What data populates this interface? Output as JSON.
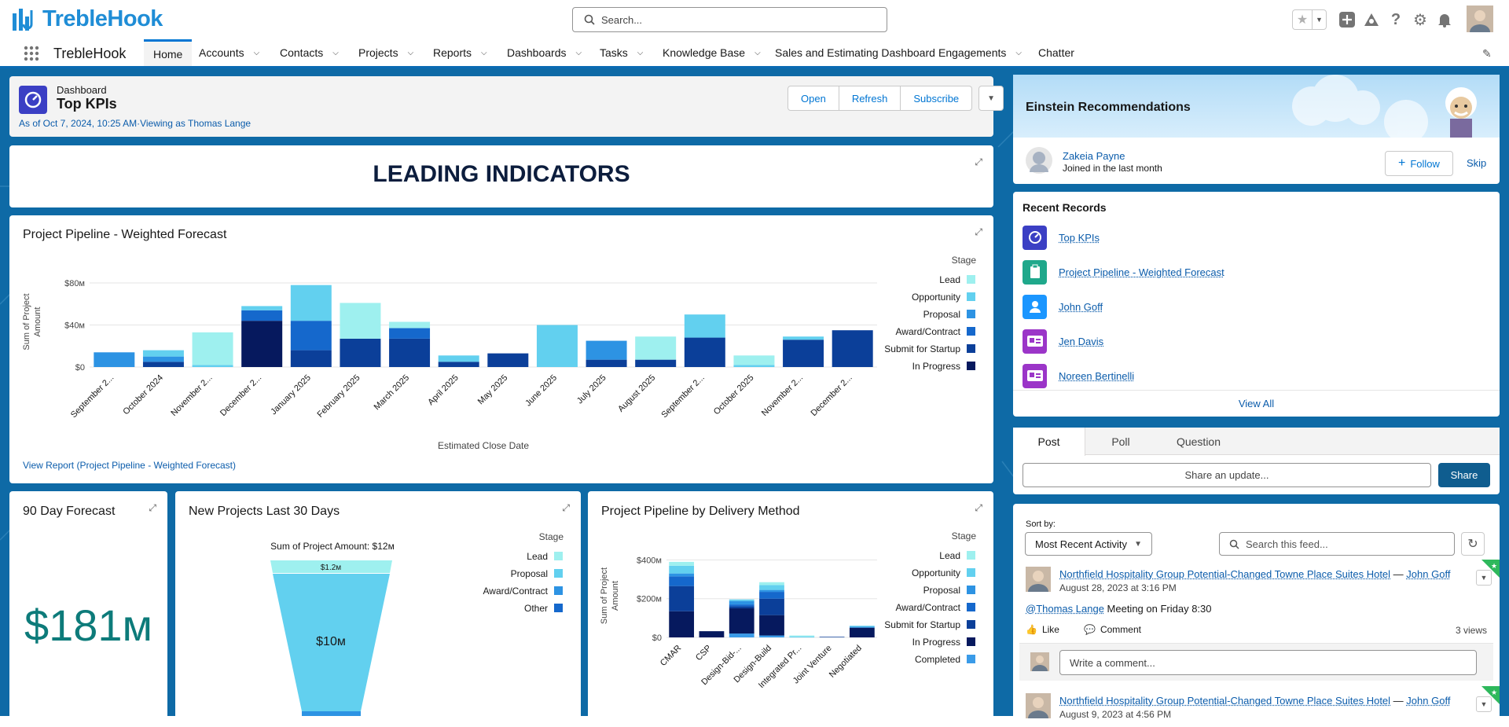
{
  "app": {
    "brand": "TrebleHook",
    "search_placeholder": "Search...",
    "nav_app_name": "TrebleHook",
    "nav_items": [
      {
        "label": "Home",
        "active": true,
        "dropdown": false
      },
      {
        "label": "Accounts",
        "dropdown": true
      },
      {
        "label": "Contacts",
        "dropdown": true
      },
      {
        "label": "Projects",
        "dropdown": true
      },
      {
        "label": "Reports",
        "dropdown": true
      },
      {
        "label": "Dashboards",
        "dropdown": true
      },
      {
        "label": "Tasks",
        "dropdown": true
      },
      {
        "label": "Knowledge Base",
        "dropdown": true
      },
      {
        "label": "Sales and Estimating Dashboard",
        "dropdown": false
      },
      {
        "label": "Engagements",
        "dropdown": true
      },
      {
        "label": "Chatter",
        "dropdown": false
      }
    ],
    "header_icons": [
      "star-icon",
      "add-icon",
      "trailhead-icon",
      "help-icon",
      "setup-gear-icon",
      "notification-bell-icon",
      "user-avatar"
    ],
    "colors": {
      "accent": "#0176d3",
      "brand": "#1f8dd6",
      "background": "#0e6aa6"
    }
  },
  "dashboard": {
    "object_label": "Dashboard",
    "title": "Top KPIs",
    "as_of": "As of Oct 7, 2024, 10:25 AM·Viewing as Thomas Lange",
    "buttons": {
      "open": "Open",
      "refresh": "Refresh",
      "subscribe": "Subscribe"
    },
    "banner_text": "LEADING INDICATORS"
  },
  "widgets": {
    "pipeline": {
      "title": "Project Pipeline - Weighted Forecast",
      "view_report": "View Report (Project Pipeline - Weighted Forecast)"
    },
    "forecast90": {
      "title": "90 Day Forecast",
      "value": "$181м"
    },
    "new_projects": {
      "title": "New Projects Last 30 Days"
    },
    "delivery": {
      "title": "Project Pipeline by Delivery Method"
    }
  },
  "chart_data": [
    {
      "type": "bar",
      "stacked": true,
      "title": "Project Pipeline - Weighted Forecast",
      "xlabel": "Estimated Close Date",
      "ylabel": "Sum of Project Amount",
      "legend_title": "Stage",
      "legend_position": "right",
      "yticks": [
        "$0",
        "$40м",
        "$80м"
      ],
      "ylim": [
        0,
        86
      ],
      "categories": [
        "September 2...",
        "October 2024",
        "November 2...",
        "December 2...",
        "January 2025",
        "February 2025",
        "March 2025",
        "April 2025",
        "May 2025",
        "June 2025",
        "July 2025",
        "August 2025",
        "September 2...",
        "October 2025",
        "November 2...",
        "December 2..."
      ],
      "series": [
        {
          "name": "Lead",
          "color": "#9ef0ef",
          "values": [
            0,
            0,
            31,
            0,
            0,
            34,
            6,
            0,
            0,
            0,
            0,
            22,
            0,
            9,
            0,
            0
          ]
        },
        {
          "name": "Opportunity",
          "color": "#62d0ef",
          "values": [
            0,
            6,
            2,
            4,
            34,
            0,
            0,
            6,
            0,
            40,
            0,
            0,
            22,
            2,
            3,
            0
          ]
        },
        {
          "name": "Proposal",
          "color": "#2d93e3",
          "values": [
            14,
            5,
            0,
            0,
            0,
            0,
            0,
            0,
            0,
            0,
            18,
            0,
            0,
            0,
            0,
            0
          ]
        },
        {
          "name": "Award/Contract",
          "color": "#1568cc",
          "values": [
            0,
            0,
            0,
            10,
            28,
            0,
            10,
            0,
            0,
            0,
            0,
            0,
            0,
            0,
            0,
            0
          ]
        },
        {
          "name": "Submit for Startup",
          "color": "#0b3f99",
          "values": [
            0,
            5,
            0,
            0,
            16,
            27,
            27,
            5,
            13,
            0,
            7,
            7,
            28,
            0,
            26,
            35
          ]
        },
        {
          "name": "In Progress",
          "color": "#06195e",
          "values": [
            0,
            0,
            0,
            44,
            0,
            0,
            0,
            0,
            0,
            0,
            0,
            0,
            0,
            0,
            0,
            0
          ]
        }
      ]
    },
    {
      "type": "funnel",
      "title": "New Projects Last 30 Days",
      "subtitle": "Sum of Project Amount: $12м",
      "legend_title": "Stage",
      "legend_position": "right",
      "series": [
        {
          "name": "Lead",
          "color": "#9ef0ef"
        },
        {
          "name": "Proposal",
          "color": "#62d0ef"
        },
        {
          "name": "Award/Contract",
          "color": "#2d93e3"
        },
        {
          "name": "Other",
          "color": "#1568cc"
        }
      ],
      "segments": [
        {
          "stage": "Lead",
          "label": "$1.2м",
          "value": 1.2
        },
        {
          "stage": "Proposal",
          "label": "$10м",
          "value": 10
        }
      ]
    },
    {
      "type": "bar",
      "stacked": true,
      "title": "Project Pipeline by Delivery Method",
      "ylabel": "Sum of Project Amount",
      "legend_title": "Stage",
      "legend_position": "right",
      "yticks": [
        "$0",
        "$200м",
        "$400м"
      ],
      "ylim": [
        0,
        430
      ],
      "categories": [
        "CMAR",
        "CSP",
        "Design-Bid-...",
        "Design-Build",
        "Integrated Pr...",
        "Joint Venture",
        "Negotiated"
      ],
      "series": [
        {
          "name": "Lead",
          "color": "#9ef0ef",
          "values": [
            20,
            0,
            0,
            15,
            5,
            0,
            0
          ]
        },
        {
          "name": "Opportunity",
          "color": "#62d0ef",
          "values": [
            40,
            0,
            8,
            25,
            5,
            0,
            5
          ]
        },
        {
          "name": "Proposal",
          "color": "#2d93e3",
          "values": [
            15,
            0,
            18,
            10,
            0,
            0,
            5
          ]
        },
        {
          "name": "Award/Contract",
          "color": "#1568cc",
          "values": [
            50,
            0,
            10,
            35,
            0,
            0,
            0
          ]
        },
        {
          "name": "Submit for Startup",
          "color": "#0b3f99",
          "values": [
            130,
            0,
            10,
            85,
            0,
            3,
            0
          ]
        },
        {
          "name": "In Progress",
          "color": "#06195e",
          "values": [
            135,
            32,
            130,
            105,
            0,
            0,
            50
          ]
        },
        {
          "name": "Completed",
          "color": "#3a9be8",
          "values": [
            0,
            0,
            20,
            10,
            0,
            0,
            0
          ]
        }
      ]
    }
  ],
  "einstein": {
    "title": "Einstein Recommendations",
    "person_name": "Zakeia Payne",
    "person_sub": "Joined in the last month",
    "follow_label": "Follow",
    "skip_label": "Skip"
  },
  "recent_records": {
    "title": "Recent Records",
    "items": [
      {
        "label": "Top KPIs",
        "icon": "dashboard-icon",
        "color": "#3b3fc4"
      },
      {
        "label": "Project Pipeline - Weighted Forecast",
        "icon": "report-icon",
        "color": "#1fa88b"
      },
      {
        "label": "John Goff",
        "icon": "contact-icon",
        "color": "#1b96ff"
      },
      {
        "label": "Jen Davis",
        "icon": "contact-card-icon",
        "color": "#9b35c8"
      },
      {
        "label": "Noreen Bertinelli",
        "icon": "contact-card-icon",
        "color": "#9b35c8"
      }
    ],
    "view_all": "View All"
  },
  "publisher": {
    "tabs": [
      "Post",
      "Poll",
      "Question"
    ],
    "share_placeholder": "Share an update...",
    "share_button": "Share"
  },
  "feed": {
    "sort_label": "Sort by:",
    "sort_value": "Most Recent Activity",
    "search_placeholder": "Search this feed...",
    "posts": [
      {
        "title": "Northfield Hospitality Group Potential-Changed Towne Place Suites Hotel",
        "sep": "—",
        "author": "John Goff",
        "date": "August 28, 2023 at 3:16 PM",
        "mention": "@Thomas Lange",
        "body": " Meeting on Friday 8:30",
        "like": "Like",
        "comment": "Comment",
        "views": "3 views",
        "comment_placeholder": "Write a comment..."
      },
      {
        "title": "Northfield Hospitality Group Potential-Changed Towne Place Suites Hotel",
        "sep": "—",
        "author": "John Goff",
        "date": "August 9, 2023 at 4:56 PM"
      }
    ]
  }
}
